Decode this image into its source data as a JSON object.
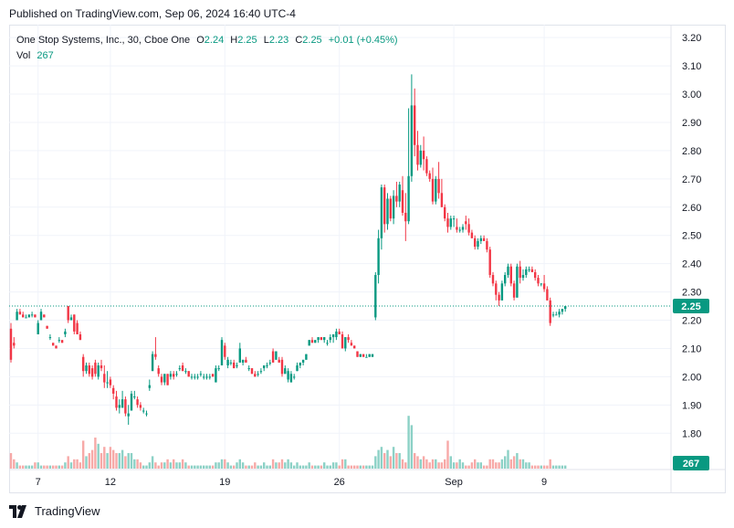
{
  "published": "Published on TradingView.com, Sep 06, 2024 16:40 UTC-4",
  "legend": {
    "symbol": "One Stop Systems, Inc., 30, Cboe One",
    "o_label": "O",
    "o": "2.24",
    "h_label": "H",
    "h": "2.25",
    "l_label": "L",
    "l": "2.23",
    "c_label": "C",
    "c": "2.25",
    "change": "+0.01 (+0.45%)",
    "vol_label": "Vol",
    "vol": "267"
  },
  "brand": "TradingView",
  "colors": {
    "up": "#089981",
    "down": "#f23645",
    "up_vol": "#8cd1c6",
    "down_vol": "#f7a9a7"
  },
  "chart_data": {
    "type": "candlestick",
    "symbol": "One Stop Systems, Inc.",
    "interval": "30",
    "ylim": [
      1.72,
      3.22
    ],
    "y_ticks": [
      "3.20",
      "3.10",
      "3.00",
      "2.90",
      "2.80",
      "2.70",
      "2.60",
      "2.50",
      "2.40",
      "2.30",
      "2.20",
      "2.10",
      "2.00",
      "1.90",
      "1.80"
    ],
    "x_ticks": [
      {
        "label": "7",
        "index": 9
      },
      {
        "label": "12",
        "index": 33
      },
      {
        "label": "19",
        "index": 71
      },
      {
        "label": "26",
        "index": 109
      },
      {
        "label": "Sep",
        "index": 147
      },
      {
        "label": "9",
        "index": 177
      }
    ],
    "last_price": "2.25",
    "last_volume": "267",
    "candles": [
      [
        2.17,
        2.19,
        2.05,
        2.06,
        5
      ],
      [
        2.12,
        2.14,
        2.1,
        2.11,
        3
      ],
      [
        2.2,
        2.24,
        2.2,
        2.23,
        2
      ],
      [
        2.23,
        2.24,
        2.22,
        2.22,
        1
      ],
      [
        2.22,
        2.23,
        2.21,
        2.21,
        1
      ],
      [
        2.21,
        2.22,
        2.21,
        2.21,
        1
      ],
      [
        2.21,
        2.22,
        2.21,
        2.22,
        1
      ],
      [
        2.22,
        2.23,
        2.21,
        2.22,
        1
      ],
      [
        2.22,
        2.22,
        2.21,
        2.21,
        2
      ],
      [
        2.15,
        2.2,
        2.15,
        2.19,
        2
      ],
      [
        2.2,
        2.24,
        2.2,
        2.23,
        1
      ],
      [
        2.22,
        2.22,
        2.21,
        2.21,
        1
      ],
      [
        2.18,
        2.18,
        2.17,
        2.17,
        1
      ],
      [
        2.14,
        2.15,
        2.13,
        2.14,
        1
      ],
      [
        2.12,
        2.12,
        2.11,
        2.11,
        1
      ],
      [
        2.11,
        2.11,
        2.1,
        2.1,
        1
      ],
      [
        2.13,
        2.14,
        2.12,
        2.13,
        1
      ],
      [
        2.13,
        2.13,
        2.12,
        2.12,
        1
      ],
      [
        2.15,
        2.17,
        2.14,
        2.16,
        2
      ],
      [
        2.25,
        2.25,
        2.19,
        2.2,
        4
      ],
      [
        2.2,
        2.22,
        2.2,
        2.21,
        2
      ],
      [
        2.22,
        2.22,
        2.15,
        2.16,
        3
      ],
      [
        2.19,
        2.2,
        2.15,
        2.15,
        3
      ],
      [
        2.15,
        2.16,
        2.13,
        2.13,
        2
      ],
      [
        2.07,
        2.08,
        2.0,
        2.02,
        9
      ],
      [
        2.02,
        2.05,
        2.01,
        2.04,
        4
      ],
      [
        2.04,
        2.05,
        2.0,
        2.01,
        5
      ],
      [
        2.03,
        2.04,
        1.99,
        2.0,
        6
      ],
      [
        2.05,
        2.06,
        2.0,
        2.01,
        10
      ],
      [
        2.0,
        2.05,
        1.99,
        2.04,
        8
      ],
      [
        2.04,
        2.06,
        2.02,
        2.03,
        5
      ],
      [
        2.01,
        2.04,
        1.96,
        1.98,
        7
      ],
      [
        1.98,
        2.02,
        1.96,
        1.98,
        5
      ],
      [
        1.99,
        2.0,
        1.96,
        1.97,
        7
      ],
      [
        1.96,
        1.97,
        1.92,
        1.94,
        6
      ],
      [
        1.93,
        1.95,
        1.88,
        1.89,
        5
      ],
      [
        1.89,
        1.92,
        1.87,
        1.9,
        5
      ],
      [
        1.89,
        1.95,
        1.89,
        1.92,
        6
      ],
      [
        1.92,
        1.93,
        1.86,
        1.87,
        4
      ],
      [
        1.86,
        1.9,
        1.83,
        1.87,
        5
      ],
      [
        1.88,
        1.95,
        1.88,
        1.94,
        5
      ],
      [
        1.93,
        1.95,
        1.92,
        1.93,
        3
      ],
      [
        1.92,
        1.93,
        1.89,
        1.9,
        3
      ],
      [
        1.9,
        1.91,
        1.88,
        1.89,
        2
      ],
      [
        1.88,
        1.89,
        1.87,
        1.88,
        1
      ],
      [
        1.87,
        1.88,
        1.86,
        1.87,
        1
      ],
      [
        1.96,
        1.99,
        1.95,
        1.97,
        2
      ],
      [
        2.02,
        2.09,
        2.02,
        2.08,
        4
      ],
      [
        2.08,
        2.14,
        2.06,
        2.07,
        2
      ],
      [
        2.03,
        2.04,
        2.0,
        2.01,
        1
      ],
      [
        2.0,
        2.01,
        1.97,
        1.98,
        2
      ],
      [
        1.98,
        2.01,
        1.97,
        2.01,
        2
      ],
      [
        2.01,
        2.01,
        1.97,
        1.97,
        3
      ],
      [
        2.0,
        2.02,
        1.99,
        2.01,
        2
      ],
      [
        2.01,
        2.02,
        1.99,
        2.0,
        3
      ],
      [
        2.01,
        2.02,
        2.0,
        2.01,
        2
      ],
      [
        2.03,
        2.04,
        2.02,
        2.03,
        2
      ],
      [
        2.04,
        2.05,
        2.02,
        2.02,
        3
      ],
      [
        2.02,
        2.03,
        2.01,
        2.02,
        2
      ],
      [
        2.02,
        2.02,
        2.0,
        2.0,
        1
      ],
      [
        2.0,
        2.01,
        1.99,
        2.0,
        1
      ],
      [
        2.0,
        2.01,
        1.99,
        2.0,
        1
      ],
      [
        2.0,
        2.01,
        1.99,
        2.0,
        1
      ],
      [
        2.01,
        2.02,
        2.0,
        2.01,
        1
      ],
      [
        2.0,
        2.01,
        1.99,
        2.0,
        1
      ],
      [
        2.0,
        2.01,
        1.99,
        2.0,
        1
      ],
      [
        2.0,
        2.01,
        1.99,
        2.0,
        1
      ],
      [
        2.01,
        2.01,
        2.0,
        2.0,
        1
      ],
      [
        1.98,
        2.04,
        1.98,
        2.03,
        2
      ],
      [
        2.03,
        2.04,
        2.02,
        2.03,
        2
      ],
      [
        2.04,
        2.14,
        2.04,
        2.13,
        3
      ],
      [
        2.11,
        2.12,
        2.06,
        2.07,
        3
      ],
      [
        2.04,
        2.07,
        2.03,
        2.06,
        2
      ],
      [
        2.05,
        2.06,
        2.04,
        2.05,
        1
      ],
      [
        2.05,
        2.06,
        2.03,
        2.03,
        1
      ],
      [
        2.04,
        2.05,
        2.03,
        2.04,
        2
      ],
      [
        2.05,
        2.12,
        2.05,
        2.1,
        3
      ],
      [
        2.05,
        2.06,
        2.04,
        2.06,
        2
      ],
      [
        2.06,
        2.07,
        2.05,
        2.05,
        1
      ],
      [
        2.03,
        2.04,
        2.02,
        2.03,
        1
      ],
      [
        2.03,
        2.03,
        2.01,
        2.01,
        1
      ],
      [
        2.01,
        2.02,
        2.0,
        2.0,
        2
      ],
      [
        2.01,
        2.02,
        2.0,
        2.01,
        1
      ],
      [
        2.02,
        2.03,
        2.01,
        2.02,
        1
      ],
      [
        2.03,
        2.04,
        2.02,
        2.04,
        2
      ],
      [
        2.04,
        2.05,
        2.03,
        2.04,
        1
      ],
      [
        2.05,
        2.06,
        2.04,
        2.05,
        1
      ],
      [
        2.09,
        2.1,
        2.05,
        2.05,
        3
      ],
      [
        2.06,
        2.09,
        2.06,
        2.09,
        2
      ],
      [
        2.06,
        2.07,
        2.05,
        2.05,
        2
      ],
      [
        2.06,
        2.07,
        2.0,
        2.01,
        3
      ],
      [
        2.01,
        2.04,
        2.01,
        2.03,
        2
      ],
      [
        1.99,
        2.03,
        1.98,
        2.02,
        3
      ],
      [
        1.98,
        2.02,
        1.98,
        2.01,
        2
      ],
      [
        2.0,
        2.01,
        1.99,
        2.0,
        1
      ],
      [
        2.02,
        2.05,
        2.02,
        2.04,
        2
      ],
      [
        2.04,
        2.05,
        2.03,
        2.05,
        1
      ],
      [
        2.05,
        2.06,
        2.04,
        2.06,
        1
      ],
      [
        2.06,
        2.08,
        2.06,
        2.08,
        1
      ],
      [
        2.11,
        2.13,
        2.11,
        2.13,
        2
      ],
      [
        2.13,
        2.14,
        2.12,
        2.12,
        1
      ],
      [
        2.12,
        2.13,
        2.12,
        2.13,
        1
      ],
      [
        2.13,
        2.14,
        2.12,
        2.14,
        1
      ],
      [
        2.14,
        2.14,
        2.13,
        2.13,
        1
      ],
      [
        2.13,
        2.14,
        2.12,
        2.14,
        2
      ],
      [
        2.12,
        2.13,
        2.11,
        2.12,
        1
      ],
      [
        2.13,
        2.15,
        2.12,
        2.14,
        1
      ],
      [
        2.14,
        2.15,
        2.12,
        2.15,
        2
      ],
      [
        2.14,
        2.17,
        2.13,
        2.16,
        2
      ],
      [
        2.16,
        2.17,
        2.15,
        2.15,
        1
      ],
      [
        2.15,
        2.16,
        2.1,
        2.1,
        3
      ],
      [
        2.1,
        2.14,
        2.09,
        2.14,
        3
      ],
      [
        2.14,
        2.15,
        2.12,
        2.13,
        1
      ],
      [
        2.12,
        2.13,
        2.11,
        2.11,
        1
      ],
      [
        2.11,
        2.11,
        2.1,
        2.1,
        1
      ],
      [
        2.09,
        2.09,
        2.07,
        2.07,
        1
      ],
      [
        2.07,
        2.08,
        2.07,
        2.08,
        1
      ],
      [
        2.08,
        2.08,
        2.07,
        2.07,
        1
      ],
      [
        2.07,
        2.08,
        2.07,
        2.07,
        1
      ],
      [
        2.07,
        2.08,
        2.07,
        2.08,
        1
      ],
      [
        2.07,
        2.08,
        2.07,
        2.08,
        1
      ],
      [
        2.21,
        2.37,
        2.2,
        2.36,
        4
      ],
      [
        2.36,
        2.52,
        2.33,
        2.49,
        6
      ],
      [
        2.49,
        2.68,
        2.45,
        2.67,
        7
      ],
      [
        2.67,
        2.68,
        2.51,
        2.54,
        5
      ],
      [
        2.54,
        2.65,
        2.52,
        2.63,
        6
      ],
      [
        2.63,
        2.64,
        2.55,
        2.56,
        4
      ],
      [
        2.56,
        2.66,
        2.54,
        2.64,
        7
      ],
      [
        2.64,
        2.69,
        2.6,
        2.62,
        5
      ],
      [
        2.62,
        2.69,
        2.6,
        2.68,
        5
      ],
      [
        2.66,
        2.71,
        2.57,
        2.58,
        3
      ],
      [
        2.58,
        2.65,
        2.48,
        2.55,
        2
      ],
      [
        2.55,
        2.95,
        2.54,
        2.71,
        17
      ],
      [
        2.71,
        3.07,
        2.69,
        2.96,
        14
      ],
      [
        2.96,
        3.02,
        2.78,
        2.82,
        5
      ],
      [
        2.82,
        2.87,
        2.73,
        2.75,
        4
      ],
      [
        2.75,
        2.82,
        2.74,
        2.8,
        3
      ],
      [
        2.8,
        2.85,
        2.73,
        2.77,
        4
      ],
      [
        2.77,
        2.78,
        2.71,
        2.72,
        3
      ],
      [
        2.72,
        2.73,
        2.69,
        2.7,
        2
      ],
      [
        2.7,
        2.74,
        2.61,
        2.62,
        3
      ],
      [
        2.62,
        2.71,
        2.61,
        2.7,
        3
      ],
      [
        2.7,
        2.76,
        2.63,
        2.65,
        2
      ],
      [
        2.65,
        2.7,
        2.6,
        2.6,
        2
      ],
      [
        2.6,
        2.61,
        2.55,
        2.56,
        3
      ],
      [
        2.56,
        2.58,
        2.51,
        2.53,
        9
      ],
      [
        2.53,
        2.57,
        2.52,
        2.56,
        4
      ],
      [
        2.56,
        2.57,
        2.53,
        2.56,
        2
      ],
      [
        2.53,
        2.56,
        2.51,
        2.52,
        2
      ],
      [
        2.52,
        2.53,
        2.51,
        2.52,
        3
      ],
      [
        2.52,
        2.54,
        2.51,
        2.53,
        2
      ],
      [
        2.55,
        2.57,
        2.52,
        2.54,
        1
      ],
      [
        2.54,
        2.56,
        2.5,
        2.51,
        1
      ],
      [
        2.51,
        2.52,
        2.49,
        2.49,
        2
      ],
      [
        2.49,
        2.5,
        2.45,
        2.46,
        3
      ],
      [
        2.46,
        2.49,
        2.45,
        2.48,
        2
      ],
      [
        2.48,
        2.5,
        2.47,
        2.49,
        2
      ],
      [
        2.49,
        2.5,
        2.48,
        2.48,
        1
      ],
      [
        2.48,
        2.49,
        2.44,
        2.45,
        1
      ],
      [
        2.45,
        2.46,
        2.35,
        2.36,
        3
      ],
      [
        2.36,
        2.37,
        2.32,
        2.33,
        3
      ],
      [
        2.33,
        2.34,
        2.27,
        2.29,
        2
      ],
      [
        2.29,
        2.3,
        2.25,
        2.27,
        2
      ],
      [
        2.27,
        2.34,
        2.27,
        2.33,
        3
      ],
      [
        2.33,
        2.37,
        2.32,
        2.36,
        4
      ],
      [
        2.36,
        2.4,
        2.35,
        2.39,
        6
      ],
      [
        2.39,
        2.4,
        2.32,
        2.33,
        3
      ],
      [
        2.33,
        2.34,
        2.27,
        2.28,
        4
      ],
      [
        2.28,
        2.4,
        2.28,
        2.39,
        5
      ],
      [
        2.39,
        2.41,
        2.33,
        2.35,
        3
      ],
      [
        2.35,
        2.38,
        2.34,
        2.36,
        3
      ],
      [
        2.36,
        2.39,
        2.35,
        2.38,
        2
      ],
      [
        2.38,
        2.39,
        2.37,
        2.38,
        2
      ],
      [
        2.38,
        2.39,
        2.37,
        2.37,
        1
      ],
      [
        2.37,
        2.38,
        2.34,
        2.35,
        1
      ],
      [
        2.35,
        2.36,
        2.32,
        2.33,
        1
      ],
      [
        2.33,
        2.33,
        2.32,
        2.33,
        1
      ],
      [
        2.33,
        2.36,
        2.3,
        2.31,
        1
      ],
      [
        2.31,
        2.32,
        2.27,
        2.27,
        1
      ],
      [
        2.27,
        2.28,
        2.18,
        2.19,
        3
      ],
      [
        2.22,
        2.23,
        2.21,
        2.22,
        1
      ],
      [
        2.22,
        2.23,
        2.22,
        2.22,
        1
      ],
      [
        2.22,
        2.24,
        2.21,
        2.23,
        1
      ],
      [
        2.23,
        2.24,
        2.22,
        2.24,
        1
      ],
      [
        2.24,
        2.25,
        2.23,
        2.25,
        1
      ]
    ]
  }
}
